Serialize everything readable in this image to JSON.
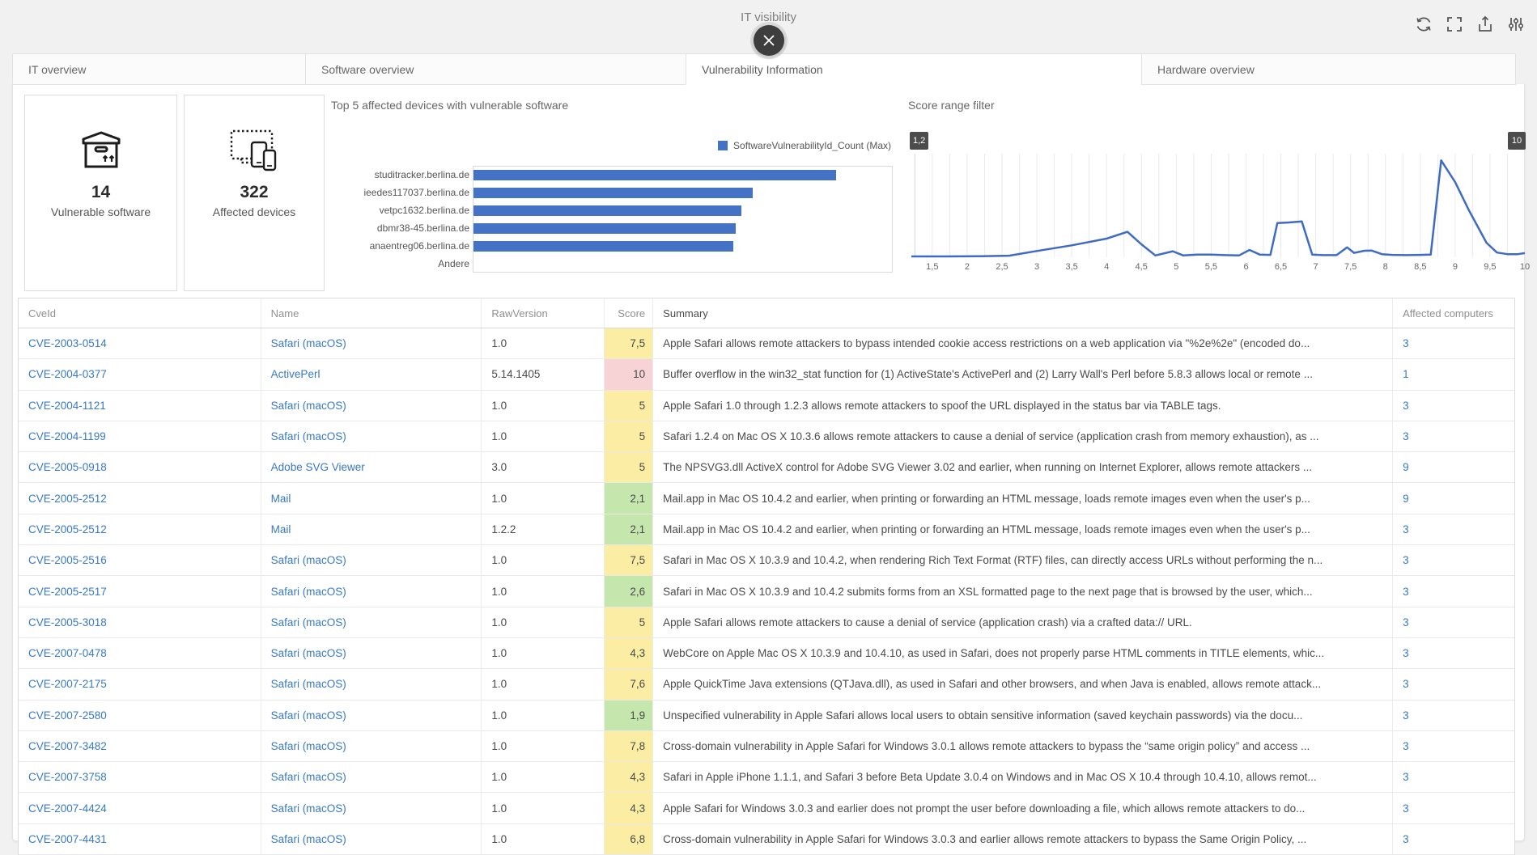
{
  "window": {
    "title": "IT visibility"
  },
  "toolbar": {
    "icons": [
      "refresh",
      "fullscreen",
      "export",
      "filter-settings"
    ]
  },
  "tabs": [
    {
      "label": "IT overview",
      "active": false
    },
    {
      "label": "Software overview",
      "active": false
    },
    {
      "label": "Vulnerability Information",
      "active": true
    },
    {
      "label": "Hardware overview",
      "active": false
    }
  ],
  "stat_cards": [
    {
      "icon": "package-box-icon",
      "value": "14",
      "label": "Vulnerable software"
    },
    {
      "icon": "devices-icon",
      "value": "322",
      "label": "Affected devices"
    }
  ],
  "chart_data": [
    {
      "type": "bar",
      "orientation": "horizontal",
      "title": "Top 5 affected devices with vulnerable software",
      "legend": [
        "SoftwareVulnerabilityId_Count (Max)"
      ],
      "legend_position": "top-right",
      "categories": [
        "studitracker.berlina.de",
        "ieedes117037.berlina.de",
        "vetpc1632.berlina.de",
        "dbmr38-45.berlina.de",
        "anaentreg06.berlina.de",
        "Andere"
      ],
      "values": [
        13,
        10,
        9.6,
        9.4,
        9.3,
        0
      ],
      "xlim": [
        0,
        15
      ],
      "grid": false,
      "color": "#4472c4"
    },
    {
      "type": "line",
      "title": "Score range filter",
      "range_handles": {
        "min_label": "1,2",
        "max_label": "10"
      },
      "xlim": [
        1.2,
        10
      ],
      "ylim": [
        0,
        20
      ],
      "grid": "vertical every 0.25",
      "color": "#3f6bc4",
      "x_tick_labels": [
        "1,5",
        "2",
        "2,5",
        "3",
        "3,5",
        "4",
        "4,5",
        "5",
        "5,5",
        "6",
        "6,5",
        "7",
        "7,5",
        "8",
        "8,5",
        "9",
        "9,5",
        "10"
      ],
      "x": [
        1.2,
        1.7,
        2.2,
        2.6,
        3.0,
        3.5,
        4.0,
        4.3,
        4.5,
        4.7,
        4.95,
        5.1,
        5.3,
        5.5,
        5.7,
        5.9,
        6.05,
        6.2,
        6.35,
        6.45,
        6.6,
        6.8,
        6.95,
        7.1,
        7.3,
        7.45,
        7.55,
        7.7,
        7.8,
        7.95,
        8.1,
        8.3,
        8.5,
        8.65,
        8.8,
        9.0,
        9.2,
        9.45,
        9.6,
        9.75,
        9.9,
        10.0
      ],
      "y": [
        0.15,
        0.15,
        0.2,
        0.3,
        1.2,
        2.3,
        3.6,
        4.9,
        2.5,
        0.35,
        1.15,
        0.35,
        0.5,
        0.5,
        0.4,
        0.35,
        1.4,
        0.5,
        0.45,
        6.6,
        6.7,
        6.9,
        0.5,
        0.4,
        0.4,
        1.9,
        0.85,
        1.25,
        1.3,
        0.6,
        0.45,
        0.4,
        0.45,
        0.5,
        18.7,
        14.5,
        9.0,
        2.8,
        0.9,
        0.6,
        0.6,
        0.8
      ]
    }
  ],
  "table": {
    "columns": [
      "CveId",
      "Name",
      "RawVersion",
      "Score",
      "Summary",
      "Affected computers"
    ],
    "rows": [
      {
        "cve": "CVE-2003-0514",
        "name": "Safari (macOS)",
        "version": "1.0",
        "score": "7,5",
        "summary": "Apple Safari allows remote attackers to bypass intended cookie access restrictions on a web application via \"%2e%2e\" (encoded do...",
        "affected": "3"
      },
      {
        "cve": "CVE-2004-0377",
        "name": "ActivePerl",
        "version": "5.14.1405",
        "score": "10",
        "summary": "Buffer overflow in the win32_stat function for (1) ActiveState's ActivePerl and (2) Larry Wall's Perl before 5.8.3 allows local or remote ...",
        "affected": "1"
      },
      {
        "cve": "CVE-2004-1121",
        "name": "Safari (macOS)",
        "version": "1.0",
        "score": "5",
        "summary": "Apple Safari 1.0 through 1.2.3 allows remote attackers to spoof the URL displayed in the status bar via TABLE tags.",
        "affected": "3"
      },
      {
        "cve": "CVE-2004-1199",
        "name": "Safari (macOS)",
        "version": "1.0",
        "score": "5",
        "summary": "Safari 1.2.4 on Mac OS X 10.3.6 allows remote attackers to cause a denial of service (application crash from memory exhaustion), as ...",
        "affected": "3"
      },
      {
        "cve": "CVE-2005-0918",
        "name": "Adobe SVG Viewer",
        "version": "3.0",
        "score": "5",
        "summary": "The NPSVG3.dll ActiveX control for Adobe SVG Viewer 3.02 and earlier, when running on Internet Explorer, allows remote attackers ...",
        "affected": "9"
      },
      {
        "cve": "CVE-2005-2512",
        "name": "Mail",
        "version": "1.0",
        "score": "2,1",
        "summary": "Mail.app in Mac OS 10.4.2 and earlier, when printing or forwarding an HTML message, loads remote images even when the user's p...",
        "affected": "9"
      },
      {
        "cve": "CVE-2005-2512",
        "name": "Mail",
        "version": "1.2.2",
        "score": "2,1",
        "summary": "Mail.app in Mac OS 10.4.2 and earlier, when printing or forwarding an HTML message, loads remote images even when the user's p...",
        "affected": "3"
      },
      {
        "cve": "CVE-2005-2516",
        "name": "Safari (macOS)",
        "version": "1.0",
        "score": "7,5",
        "summary": "Safari in Mac OS X 10.3.9 and 10.4.2, when rendering Rich Text Format (RTF) files, can directly access URLs without performing the n...",
        "affected": "3"
      },
      {
        "cve": "CVE-2005-2517",
        "name": "Safari (macOS)",
        "version": "1.0",
        "score": "2,6",
        "summary": "Safari in Mac OS X 10.3.9 and 10.4.2 submits forms from an XSL formatted page to the next page that is browsed by the user, which...",
        "affected": "3"
      },
      {
        "cve": "CVE-2005-3018",
        "name": "Safari (macOS)",
        "version": "1.0",
        "score": "5",
        "summary": "Apple Safari allows remote attackers to cause a denial of service (application crash) via a crafted data:// URL.",
        "affected": "3"
      },
      {
        "cve": "CVE-2007-0478",
        "name": "Safari (macOS)",
        "version": "1.0",
        "score": "4,3",
        "summary": "WebCore on Apple Mac OS X 10.3.9 and 10.4.10, as used in Safari, does not properly parse HTML comments in TITLE elements, whic...",
        "affected": "3"
      },
      {
        "cve": "CVE-2007-2175",
        "name": "Safari (macOS)",
        "version": "1.0",
        "score": "7,6",
        "summary": "Apple QuickTime Java extensions (QTJava.dll), as used in Safari and other browsers, and when Java is enabled, allows remote attack...",
        "affected": "3"
      },
      {
        "cve": "CVE-2007-2580",
        "name": "Safari (macOS)",
        "version": "1.0",
        "score": "1,9",
        "summary": "Unspecified vulnerability in Apple Safari allows local users to obtain sensitive information (saved keychain passwords) via the docu...",
        "affected": "3"
      },
      {
        "cve": "CVE-2007-3482",
        "name": "Safari (macOS)",
        "version": "1.0",
        "score": "7,8",
        "summary": "Cross-domain vulnerability in Apple Safari for Windows 3.0.1 allows remote attackers to bypass the “same origin policy” and access ...",
        "affected": "3"
      },
      {
        "cve": "CVE-2007-3758",
        "name": "Safari (macOS)",
        "version": "1.0",
        "score": "4,3",
        "summary": "Safari in Apple iPhone 1.1.1, and Safari 3 before Beta Update 3.0.4 on Windows and in Mac OS X 10.4 through 10.4.10, allows remot...",
        "affected": "3"
      },
      {
        "cve": "CVE-2007-4424",
        "name": "Safari (macOS)",
        "version": "1.0",
        "score": "4,3",
        "summary": "Apple Safari for Windows 3.0.3 and earlier does not prompt the user before downloading a file, which allows remote attackers to do...",
        "affected": "3"
      },
      {
        "cve": "CVE-2007-4431",
        "name": "Safari (macOS)",
        "version": "1.0",
        "score": "6,8",
        "summary": "Cross-domain vulnerability in Apple Safari for Windows 3.0.3 and earlier allows remote attackers to bypass the Same Origin Policy, ...",
        "affected": "3"
      }
    ]
  },
  "colors": {
    "accent_blue": "#4472c4",
    "link_blue": "#3879c4",
    "score_low_green": "#c5e6ad",
    "score_medium_yellow": "#fbeda3",
    "score_high_pink": "#f8d3d6",
    "handle_dark": "#4c4c4c",
    "page_background": "#f1f1f2"
  }
}
